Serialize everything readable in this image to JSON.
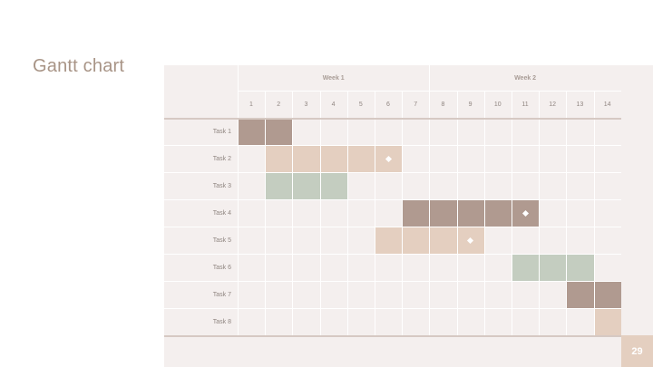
{
  "slide": {
    "title": "Gantt chart",
    "page_number": "29"
  },
  "chart_data": {
    "type": "gantt",
    "weeks": [
      {
        "label": "Week 1",
        "days": [
          1,
          7
        ]
      },
      {
        "label": "Week 2",
        "days": [
          8,
          14
        ]
      }
    ],
    "days": [
      "1",
      "2",
      "3",
      "4",
      "5",
      "6",
      "7",
      "8",
      "9",
      "10",
      "11",
      "12",
      "13",
      "14"
    ],
    "tasks": [
      {
        "label": "Task 1",
        "start": 1,
        "end": 2,
        "color": "#b09a90",
        "milestone": null
      },
      {
        "label": "Task 2",
        "start": 2,
        "end": 6,
        "color": "#e4cfc0",
        "milestone": 6
      },
      {
        "label": "Task 3",
        "start": 2,
        "end": 4,
        "color": "#c4cdc0",
        "milestone": null
      },
      {
        "label": "Task 4",
        "start": 7,
        "end": 11,
        "color": "#b09a90",
        "milestone": 11
      },
      {
        "label": "Task 5",
        "start": 6,
        "end": 9,
        "color": "#e4cfc0",
        "milestone": 9
      },
      {
        "label": "Task 6",
        "start": 11,
        "end": 13,
        "color": "#c4cdc0",
        "milestone": null
      },
      {
        "label": "Task 7",
        "start": 13,
        "end": 14,
        "color": "#b09a90",
        "milestone": null
      },
      {
        "label": "Task 8",
        "start": 14,
        "end": 14,
        "color": "#e4cfc0",
        "milestone": null
      }
    ]
  }
}
